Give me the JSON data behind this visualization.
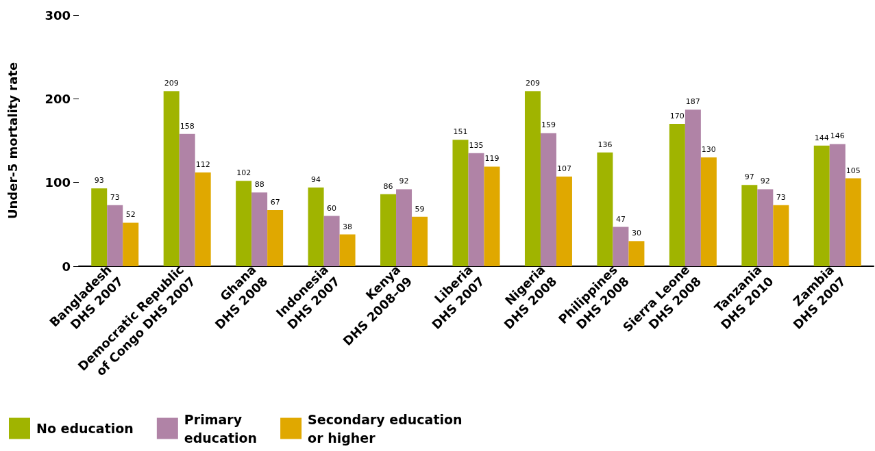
{
  "chart_data": {
    "type": "bar",
    "ylabel": "Under-5 mortality rate",
    "categories": [
      "Bangladesh\nDHS 2007",
      "Democratic Republic\nof Congo DHS 2007",
      "Ghana\nDHS 2008",
      "Indonesia\nDHS 2007",
      "Kenya\nDHS 2008–09",
      "Liberia\nDHS 2007",
      "Nigeria\nDHS 2008",
      "Philippines\nDHS 2008",
      "Sierra Leone\nDHS 2008",
      "Tanzania\nDHS 2010",
      "Zambia\nDHS 2007"
    ],
    "series": [
      {
        "name": "No education",
        "color": "#a0b400",
        "values": [
          93,
          209,
          102,
          94,
          86,
          151,
          209,
          136,
          170,
          97,
          144
        ]
      },
      {
        "name": "Primary\neducation",
        "color": "#b083a6",
        "values": [
          73,
          158,
          88,
          60,
          92,
          135,
          159,
          47,
          187,
          92,
          146
        ]
      },
      {
        "name": "Secondary education\nor higher",
        "color": "#e0a800",
        "values": [
          52,
          112,
          67,
          38,
          59,
          119,
          107,
          30,
          130,
          73,
          105
        ]
      }
    ],
    "ylim": [
      0,
      300
    ],
    "yticks": [
      0,
      100,
      200,
      300
    ],
    "grid": false,
    "legend": "bottom left",
    "data_labels": true
  }
}
